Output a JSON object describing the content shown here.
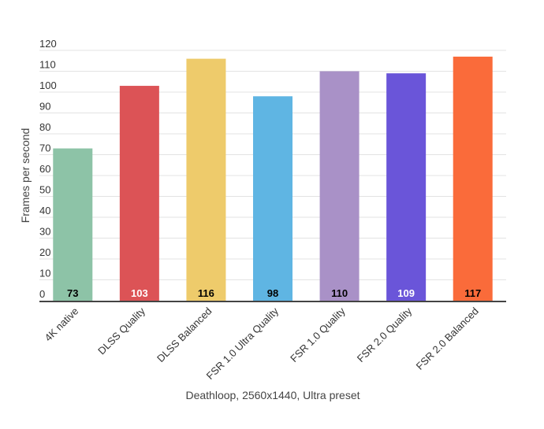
{
  "chart_data": {
    "type": "bar",
    "categories": [
      "4K native",
      "DLSS Quality",
      "DLSS Balanced",
      "FSR 1.0 Ultra Quality",
      "FSR 1.0 Quality",
      "FSR 2.0 Quality",
      "FSR 2.0 Balanced"
    ],
    "values": [
      73,
      103,
      116,
      98,
      110,
      109,
      117
    ],
    "colors": [
      "#8dc3a7",
      "#dc5356",
      "#eecb6b",
      "#5fb5e3",
      "#a991c7",
      "#6a55d9",
      "#fa6b3a"
    ],
    "data_label_colors": [
      "#000000",
      "#ffffff",
      "#000000",
      "#000000",
      "#000000",
      "#ffffff",
      "#000000"
    ],
    "y_ticks": [
      0,
      10,
      20,
      30,
      40,
      50,
      60,
      70,
      80,
      90,
      100,
      110,
      120
    ],
    "xlabel": "Deathloop, 2560x1440, Ultra preset",
    "ylabel": "Frames per second",
    "ylim": [
      0,
      120
    ],
    "grid": true,
    "legend": "none"
  }
}
